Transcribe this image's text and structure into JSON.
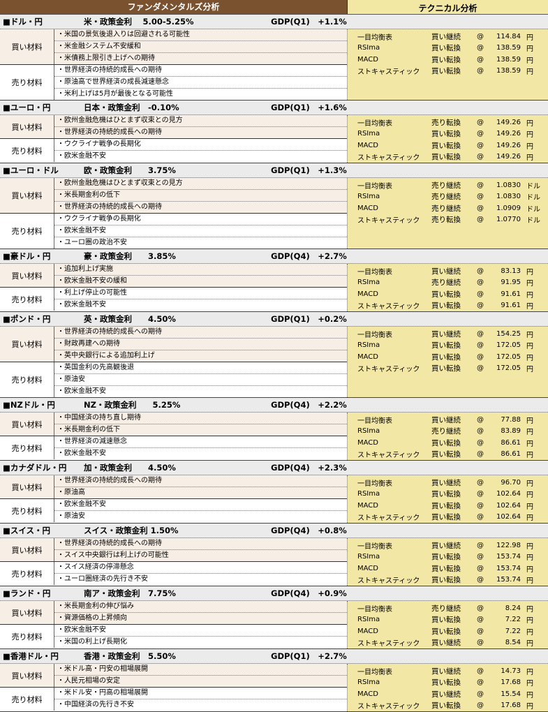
{
  "header": {
    "fundamentals": "ファンダメンタルズ分析",
    "technical": "テクニカル分析"
  },
  "labels": {
    "buy": "買い材料",
    "sell": "売り材料",
    "at": "@"
  },
  "colors": {
    "fund_header": "#7b5230",
    "tech_bg": "#f3e7a5",
    "buy_bg": "#f7eee5",
    "section_bg": "#ebebeb"
  },
  "sections": [
    {
      "pair": "■ドル・円",
      "rate": "米・政策金利　 5.00-5.25%",
      "gdp": "GDP(Q1)　+1.1%",
      "buy": [
        "・米国の景気後退入りは回避される可能性",
        "・米金融システム不安緩和",
        "・米債務上限引き上げへの期待"
      ],
      "sell": [
        "・世界経済の持続的成長への期待",
        "・原油高で世界経済の成長減速懸念",
        "・米利上げは5月が最後となる可能性"
      ],
      "tech": [
        {
          "indicator": "一目均衡表",
          "signal": "買い継続",
          "value": "114.84",
          "unit": "円"
        },
        {
          "indicator": "RSIma",
          "signal": "買い転換",
          "value": "138.59",
          "unit": "円"
        },
        {
          "indicator": "MACD",
          "signal": "買い転換",
          "value": "138.59",
          "unit": "円"
        },
        {
          "indicator": "ストキャスティック",
          "signal": "買い転換",
          "value": "138.59",
          "unit": "円"
        }
      ]
    },
    {
      "pair": "■ユーロ・円",
      "rate": "日本・政策金利　-0.10%",
      "gdp": "GDP(Q1)　+1.6%",
      "buy": [
        "・欧州金融危機はひとまず収束との見方",
        "・世界経済の持続的成長への期待"
      ],
      "sell": [
        "・ウクライナ戦争の長期化",
        "・欧米金融不安"
      ],
      "tech": [
        {
          "indicator": "一目均衡表",
          "signal": "売り転換",
          "value": "149.26",
          "unit": "円"
        },
        {
          "indicator": "RSIma",
          "signal": "買い転換",
          "value": "149.26",
          "unit": "円"
        },
        {
          "indicator": "MACD",
          "signal": "買い転換",
          "value": "149.26",
          "unit": "円"
        },
        {
          "indicator": "ストキャスティック",
          "signal": "買い転換",
          "value": "149.26",
          "unit": "円"
        }
      ]
    },
    {
      "pair": "■ユーロ・ドル",
      "rate": "欧・政策金利　　3.75%",
      "gdp": "GDP(Q1)　+1.3%",
      "buy": [
        "・欧州金融危機はひとまず収束との見方",
        "・米長期金利の低下",
        "・世界経済の持続的成長への期待"
      ],
      "sell": [
        "・ウクライナ戦争の長期化",
        "・欧米金融不安",
        "・ユーロ圏の政治不安"
      ],
      "tech": [
        {
          "indicator": "一目均衡表",
          "signal": "売り継続",
          "value": "1.0830",
          "unit": "ドル"
        },
        {
          "indicator": "RSIma",
          "signal": "売り継続",
          "value": "1.0830",
          "unit": "ドル"
        },
        {
          "indicator": "MACD",
          "signal": "売り継続",
          "value": "1.0909",
          "unit": "ドル"
        },
        {
          "indicator": "ストキャスティック",
          "signal": "売り転換",
          "value": "1.0770",
          "unit": "ドル"
        }
      ]
    },
    {
      "pair": "■豪ドル・円",
      "rate": "豪・政策金利　　3.85%",
      "gdp": "GDP(Q4)　+2.7%",
      "buy": [
        "・追加利上げ実施",
        "・欧米金融不安の緩和"
      ],
      "sell": [
        "・利上げ停止の可能性",
        "・欧米金融不安"
      ],
      "tech": [
        {
          "indicator": "一目均衡表",
          "signal": "買い継続",
          "value": "83.13",
          "unit": "円"
        },
        {
          "indicator": "RSIma",
          "signal": "売り継続",
          "value": "91.95",
          "unit": "円"
        },
        {
          "indicator": "MACD",
          "signal": "買い転換",
          "value": "91.61",
          "unit": "円"
        },
        {
          "indicator": "ストキャスティック",
          "signal": "買い転換",
          "value": "91.61",
          "unit": "円"
        }
      ]
    },
    {
      "pair": "■ポンド・円",
      "rate": "英・政策金利　　4.50%",
      "gdp": "GDP(Q1)　+0.2%",
      "buy": [
        "・世界経済の持続的成長への期待",
        "・財政再建への期待",
        "・英中央銀行による追加利上げ"
      ],
      "sell": [
        "・英国金利の先高観後退",
        "・原油安",
        "・欧米金融不安"
      ],
      "tech": [
        {
          "indicator": "一目均衡表",
          "signal": "買い継続",
          "value": "154.25",
          "unit": "円"
        },
        {
          "indicator": "RSIma",
          "signal": "買い転換",
          "value": "172.05",
          "unit": "円"
        },
        {
          "indicator": "MACD",
          "signal": "買い転換",
          "value": "172.05",
          "unit": "円"
        },
        {
          "indicator": "ストキャスティック",
          "signal": "買い転換",
          "value": "172.05",
          "unit": "円"
        }
      ]
    },
    {
      "pair": "■NZドル・円",
      "rate": "NZ・政策金利　　5.25%",
      "gdp": "GDP(Q4)　+2.2%",
      "buy": [
        "・中国経済の持ち直し期待",
        "・米長期金利の低下"
      ],
      "sell": [
        "・世界経済の減速懸念",
        "・欧米金融不安"
      ],
      "tech": [
        {
          "indicator": "一目均衡表",
          "signal": "買い継続",
          "value": "77.88",
          "unit": "円"
        },
        {
          "indicator": "RSIma",
          "signal": "売り継続",
          "value": "83.89",
          "unit": "円"
        },
        {
          "indicator": "MACD",
          "signal": "買い転換",
          "value": "86.61",
          "unit": "円"
        },
        {
          "indicator": "ストキャスティック",
          "signal": "買い転換",
          "value": "86.61",
          "unit": "円"
        }
      ]
    },
    {
      "pair": "■カナダドル・円",
      "rate": "加・政策金利　　4.50%",
      "gdp": "GDP(Q4)　+2.3%",
      "buy": [
        "・世界経済の持続的成長への期待",
        "・原油高"
      ],
      "sell": [
        "・欧米金融不安",
        "・原油安"
      ],
      "tech": [
        {
          "indicator": "一目均衡表",
          "signal": "買い継続",
          "value": "96.70",
          "unit": "円"
        },
        {
          "indicator": "RSIma",
          "signal": "買い転換",
          "value": "102.64",
          "unit": "円"
        },
        {
          "indicator": "MACD",
          "signal": "買い転換",
          "value": "102.64",
          "unit": "円"
        },
        {
          "indicator": "ストキャスティック",
          "signal": "買い転換",
          "value": "102.64",
          "unit": "円"
        }
      ]
    },
    {
      "pair": "■スイス・円",
      "rate": "スイス・政策金利 1.50%",
      "gdp": "GDP(Q4)　+0.8%",
      "buy": [
        "・世界経済の持続的成長への期待",
        "・スイス中央銀行は利上げの可能性"
      ],
      "sell": [
        "・スイス経済の停滞懸念",
        "・ユーロ圏経済の先行き不安"
      ],
      "tech": [
        {
          "indicator": "一目均衡表",
          "signal": "買い継続",
          "value": "122.98",
          "unit": "円"
        },
        {
          "indicator": "RSIma",
          "signal": "買い転換",
          "value": "153.74",
          "unit": "円"
        },
        {
          "indicator": "MACD",
          "signal": "買い転換",
          "value": "153.74",
          "unit": "円"
        },
        {
          "indicator": "ストキャスティック",
          "signal": "買い転換",
          "value": "153.74",
          "unit": "円"
        }
      ]
    },
    {
      "pair": "■ランド・円",
      "rate": "南ア・政策金利　7.75%",
      "gdp": "GDP(Q4)　+0.9%",
      "buy": [
        "・米長期金利の伸び悩み",
        "・資源価格の上昇傾向"
      ],
      "sell": [
        "・欧米金融不安",
        "・米国の利上げ長期化"
      ],
      "tech": [
        {
          "indicator": "一目均衡表",
          "signal": "売り継続",
          "value": "8.24",
          "unit": "円"
        },
        {
          "indicator": "RSIma",
          "signal": "買い転換",
          "value": "7.22",
          "unit": "円"
        },
        {
          "indicator": "MACD",
          "signal": "買い転換",
          "value": "7.22",
          "unit": "円"
        },
        {
          "indicator": "ストキャスティック",
          "signal": "買い継続",
          "value": "8.54",
          "unit": "円"
        }
      ]
    },
    {
      "pair": "■香港ドル・円",
      "rate": "香港・政策金利　5.50%",
      "gdp": "GDP(Q1)　+2.7%",
      "buy": [
        "・米ドル高・円安の相場展開",
        "・人民元相場の安定"
      ],
      "sell": [
        "・米ドル安・円高の相場展開",
        "・中国経済の先行き不安"
      ],
      "tech": [
        {
          "indicator": "一目均衡表",
          "signal": "買い継続",
          "value": "14.73",
          "unit": "円"
        },
        {
          "indicator": "RSIma",
          "signal": "買い転換",
          "value": "17.68",
          "unit": "円"
        },
        {
          "indicator": "MACD",
          "signal": "買い継続",
          "value": "15.54",
          "unit": "円"
        },
        {
          "indicator": "ストキャスティック",
          "signal": "買い転換",
          "value": "17.68",
          "unit": "円"
        }
      ]
    }
  ]
}
